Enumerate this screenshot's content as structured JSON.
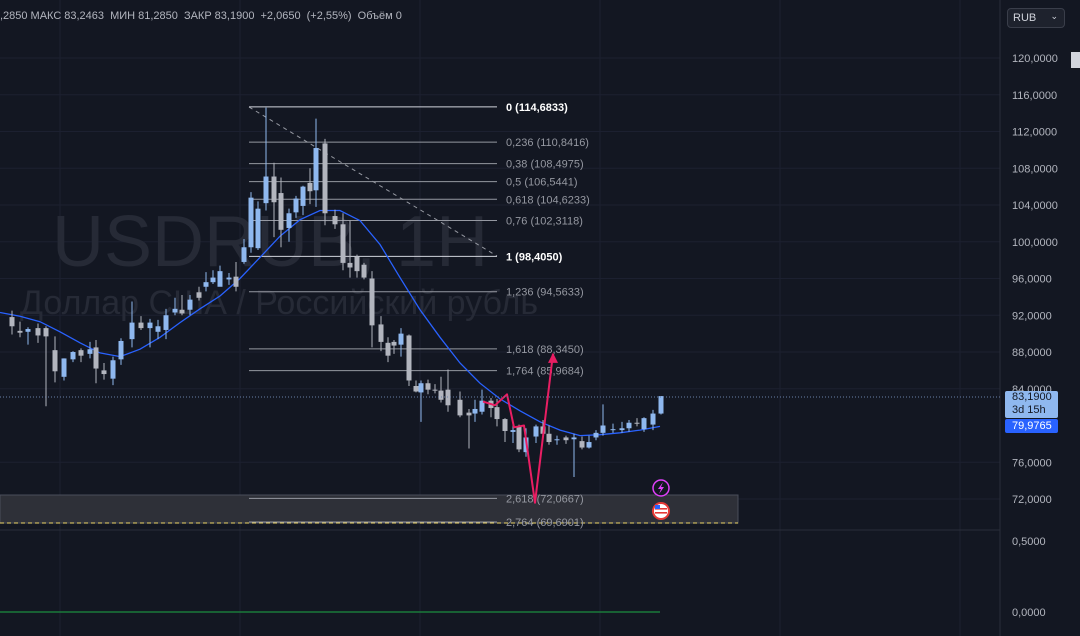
{
  "ohlc_bar": {
    "open_value": ",2850",
    "high_label": "МАКС",
    "high_value": "83,2463",
    "low_label": "МИН",
    "low_value": "81,2850",
    "close_label": "ЗАКР",
    "close_value": "83,1900",
    "change": "+2,0650",
    "change_pct": "(+2,55%)",
    "volume_label": "Объём",
    "volume_value": "0"
  },
  "currency_selector": {
    "label": "RUB",
    "chevron": "chevron-down-icon"
  },
  "watermark": {
    "symbol": "USDRUB, 1H",
    "description": "Доллар США / Российский рубль"
  },
  "price_tags": {
    "last_price": "83,1900",
    "countdown": "3d 15h",
    "ma_value": "79,9765"
  },
  "colors": {
    "background": "#131722",
    "candle_up": "#8fb8ef",
    "candle_down": "#b2b5be",
    "moving_average": "#2962ff",
    "pattern": "#e91e63",
    "fib_line": "#9598a1",
    "grid": "#1c2030"
  },
  "events": [
    {
      "icon": "lightning-icon"
    },
    {
      "icon": "us-flag-icon"
    }
  ],
  "chart_data": {
    "type": "candlestick",
    "symbol": "USDRUB",
    "timeframe": "1H",
    "y_axis": {
      "ticks": [
        "120,0000",
        "116,0000",
        "112,0000",
        "108,0000",
        "104,0000",
        "100,0000",
        "96,0000",
        "92,0000",
        "88,0000",
        "84,0000",
        "76,0000",
        "72,0000"
      ],
      "ylim": [
        71.5,
        120.5
      ]
    },
    "indicator_axis": {
      "ticks": [
        "0,5000",
        "0,0000"
      ]
    },
    "fibonacci": [
      {
        "label": "0 (114,6833)",
        "level": 114.6833,
        "bold": true
      },
      {
        "label": "0,236 (110,8416)",
        "level": 110.8416
      },
      {
        "label": "0,38 (108,4975)",
        "level": 108.4975
      },
      {
        "label": "0,5 (106,5441)",
        "level": 106.5441
      },
      {
        "label": "0,618 (104,6233)",
        "level": 104.6233
      },
      {
        "label": "0,76 (102,3118)",
        "level": 102.3118
      },
      {
        "label": "1 (98,4050)",
        "level": 98.405,
        "bold": true
      },
      {
        "label": "1,236 (94,5633)",
        "level": 94.5633
      },
      {
        "label": "1,618 (88,3450)",
        "level": 88.345
      },
      {
        "label": "1,764 (85,9684)",
        "level": 85.9684
      },
      {
        "label": "2,618 (72,0667)",
        "level": 72.0667
      },
      {
        "label": "2,764 (69,6901)",
        "level": 69.6901
      }
    ],
    "ma_path": [
      [
        0,
        92.3
      ],
      [
        20,
        91.9
      ],
      [
        40,
        91.3
      ],
      [
        60,
        90.2
      ],
      [
        80,
        89
      ],
      [
        100,
        87.9
      ],
      [
        120,
        87.5
      ],
      [
        140,
        88.3
      ],
      [
        160,
        89.6
      ],
      [
        180,
        91.2
      ],
      [
        200,
        92.7
      ],
      [
        220,
        94.1
      ],
      [
        240,
        96
      ],
      [
        260,
        98.3
      ],
      [
        280,
        100.6
      ],
      [
        300,
        102.4
      ],
      [
        320,
        103.4
      ],
      [
        340,
        103.4
      ],
      [
        360,
        102.3
      ],
      [
        380,
        99.7
      ],
      [
        400,
        96.1
      ],
      [
        420,
        92.6
      ],
      [
        440,
        89.6
      ],
      [
        460,
        86.8
      ],
      [
        480,
        84.6
      ],
      [
        500,
        82.9
      ],
      [
        520,
        81.6
      ],
      [
        540,
        80.4
      ],
      [
        560,
        79.5
      ],
      [
        580,
        78.9
      ],
      [
        600,
        79
      ],
      [
        620,
        79.2
      ],
      [
        640,
        79.5
      ],
      [
        660,
        79.9
      ]
    ],
    "pattern_path": [
      [
        483,
        82.6
      ],
      [
        495,
        82.2
      ],
      [
        507,
        83.4
      ],
      [
        514,
        79.8
      ],
      [
        524,
        80
      ],
      [
        535,
        71.6
      ],
      [
        553,
        87.8
      ]
    ],
    "pattern_arrow_tip": [
      553,
      87.9
    ],
    "candles": [
      {
        "x": 12,
        "o": 91.8,
        "h": 92.5,
        "c": 90.8,
        "l": 89.9
      },
      {
        "x": 20,
        "o": 90.3,
        "h": 91.3,
        "c": 90.1,
        "l": 89.6
      },
      {
        "x": 28,
        "o": 90.2,
        "h": 90.7,
        "c": 90.5,
        "l": 88.8
      },
      {
        "x": 38,
        "o": 90.6,
        "h": 91.1,
        "c": 89.8,
        "l": 89
      },
      {
        "x": 46,
        "o": 90.6,
        "h": 90.8,
        "c": 89.7,
        "l": 82.1
      },
      {
        "x": 55,
        "o": 88.2,
        "h": 89.7,
        "c": 85.9,
        "l": 84.7
      },
      {
        "x": 64,
        "o": 85.3,
        "h": 87.3,
        "c": 87.3,
        "l": 84.9
      },
      {
        "x": 73,
        "o": 87.2,
        "h": 88.1,
        "c": 88,
        "l": 86.9
      },
      {
        "x": 81,
        "o": 88.2,
        "h": 88.4,
        "c": 87.6,
        "l": 86.9
      },
      {
        "x": 90,
        "o": 87.8,
        "h": 89.1,
        "c": 88.3,
        "l": 87.3
      },
      {
        "x": 96,
        "o": 88.5,
        "h": 89.3,
        "c": 86.2,
        "l": 84.6
      },
      {
        "x": 104,
        "o": 86,
        "h": 86.8,
        "c": 85.6,
        "l": 85
      },
      {
        "x": 113,
        "o": 85.1,
        "h": 87.5,
        "c": 87.1,
        "l": 84.4
      },
      {
        "x": 121,
        "o": 87.2,
        "h": 89.5,
        "c": 89.2,
        "l": 86.6
      },
      {
        "x": 132,
        "o": 89.4,
        "h": 93.5,
        "c": 91.2,
        "l": 88.5
      },
      {
        "x": 141,
        "o": 91.2,
        "h": 91.9,
        "c": 90.6,
        "l": 90.4
      },
      {
        "x": 150,
        "o": 90.6,
        "h": 91.6,
        "c": 91.2,
        "l": 88.5
      },
      {
        "x": 158,
        "o": 90.2,
        "h": 91.5,
        "c": 90.8,
        "l": 89.4
      },
      {
        "x": 166,
        "o": 90.4,
        "h": 92.7,
        "c": 92,
        "l": 89.4
      },
      {
        "x": 175,
        "o": 92.3,
        "h": 93.9,
        "c": 92.7,
        "l": 92
      },
      {
        "x": 182,
        "o": 92.6,
        "h": 94.2,
        "c": 92.2,
        "l": 92
      },
      {
        "x": 190,
        "o": 92.6,
        "h": 94.2,
        "c": 93.7,
        "l": 92
      },
      {
        "x": 199,
        "o": 94.5,
        "h": 95.1,
        "c": 93.9,
        "l": 93.6
      },
      {
        "x": 206,
        "o": 95.1,
        "h": 96.7,
        "c": 95.6,
        "l": 94.6
      },
      {
        "x": 213,
        "o": 95.6,
        "h": 96.9,
        "c": 96.1,
        "l": 95.4
      },
      {
        "x": 220,
        "o": 95.1,
        "h": 97.4,
        "c": 96.8,
        "l": 95.4
      },
      {
        "x": 229,
        "o": 95.9,
        "h": 96.6,
        "c": 96.1,
        "l": 95.3
      },
      {
        "x": 236,
        "o": 96.2,
        "h": 97.8,
        "c": 95.1,
        "l": 94.6
      },
      {
        "x": 244,
        "o": 97.8,
        "h": 100.3,
        "c": 99.4,
        "l": 97.6
      },
      {
        "x": 251,
        "o": 99.4,
        "h": 105.4,
        "c": 104.8,
        "l": 98.8
      },
      {
        "x": 258,
        "o": 99.3,
        "h": 104.4,
        "c": 103.6,
        "l": 99.1
      },
      {
        "x": 266,
        "o": 104.2,
        "h": 114.6,
        "c": 107.1,
        "l": 103.4
      },
      {
        "x": 274,
        "o": 107.1,
        "h": 108.6,
        "c": 104.3,
        "l": 100.5
      },
      {
        "x": 281,
        "o": 105.3,
        "h": 107,
        "c": 101.3,
        "l": 99.4
      },
      {
        "x": 289,
        "o": 101.5,
        "h": 103.6,
        "c": 103.1,
        "l": 100
      },
      {
        "x": 296,
        "o": 103.2,
        "h": 105,
        "c": 104.7,
        "l": 102.6
      },
      {
        "x": 303,
        "o": 103.9,
        "h": 106.1,
        "c": 106,
        "l": 102.9
      },
      {
        "x": 310,
        "o": 106.4,
        "h": 108,
        "c": 105.5,
        "l": 104.1
      },
      {
        "x": 316,
        "o": 105.6,
        "h": 113.4,
        "c": 110.2,
        "l": 103.8
      },
      {
        "x": 325,
        "o": 110.7,
        "h": 111.2,
        "c": 103.1,
        "l": 101.8
      },
      {
        "x": 335,
        "o": 102.8,
        "h": 103.5,
        "c": 101.9,
        "l": 101.4
      },
      {
        "x": 343,
        "o": 101.9,
        "h": 103.1,
        "c": 97.7,
        "l": 96.9
      },
      {
        "x": 350,
        "o": 97.7,
        "h": 102.3,
        "c": 97.2,
        "l": 96.1
      },
      {
        "x": 357,
        "o": 98.4,
        "h": 98.6,
        "c": 96.8,
        "l": 96.1
      },
      {
        "x": 364,
        "o": 97.5,
        "h": 97.7,
        "c": 96.1,
        "l": 95.9
      },
      {
        "x": 372,
        "o": 96,
        "h": 96.8,
        "c": 90.9,
        "l": 88.5
      },
      {
        "x": 381,
        "o": 91,
        "h": 91.9,
        "c": 89.1,
        "l": 88.1
      },
      {
        "x": 388,
        "o": 89,
        "h": 89.6,
        "c": 87.6,
        "l": 86.9
      },
      {
        "x": 394,
        "o": 89.1,
        "h": 89.3,
        "c": 88.7,
        "l": 87.8
      },
      {
        "x": 401,
        "o": 88.8,
        "h": 90.6,
        "c": 90,
        "l": 87.5
      },
      {
        "x": 409,
        "o": 89.8,
        "h": 89.9,
        "c": 84.9,
        "l": 84.3
      },
      {
        "x": 416,
        "o": 84.3,
        "h": 84.9,
        "c": 83.7,
        "l": 83.6
      },
      {
        "x": 421,
        "o": 83.6,
        "h": 84.9,
        "c": 84.6,
        "l": 80.4
      },
      {
        "x": 428,
        "o": 84.6,
        "h": 85,
        "c": 83.9,
        "l": 83.4
      },
      {
        "x": 435,
        "o": 83.9,
        "h": 84.5,
        "c": 83.8,
        "l": 83.5
      },
      {
        "x": 441,
        "o": 83.8,
        "h": 85.3,
        "c": 82.8,
        "l": 82.5
      },
      {
        "x": 448,
        "o": 83.9,
        "h": 86.1,
        "c": 82.2,
        "l": 81.5
      },
      {
        "x": 460,
        "o": 82.8,
        "h": 83.7,
        "c": 81.1,
        "l": 80.9
      },
      {
        "x": 469,
        "o": 81.4,
        "h": 81.8,
        "c": 81.1,
        "l": 77.5
      },
      {
        "x": 475,
        "o": 81.3,
        "h": 82.8,
        "c": 81.8,
        "l": 80.4
      },
      {
        "x": 482,
        "o": 81.5,
        "h": 83.9,
        "c": 82.7,
        "l": 81.2
      },
      {
        "x": 491,
        "o": 82.7,
        "h": 83,
        "c": 81.9,
        "l": 80.9
      },
      {
        "x": 497,
        "o": 82,
        "h": 82.9,
        "c": 80.7,
        "l": 79.9
      },
      {
        "x": 505,
        "o": 80.7,
        "h": 80.8,
        "c": 79.4,
        "l": 78.2
      },
      {
        "x": 513,
        "o": 79.3,
        "h": 80.4,
        "c": 79.5,
        "l": 78.1
      },
      {
        "x": 519,
        "o": 79.9,
        "h": 80.1,
        "c": 77.4,
        "l": 77.1
      },
      {
        "x": 526,
        "o": 77.1,
        "h": 79.7,
        "c": 78.7,
        "l": 76.6
      },
      {
        "x": 536,
        "o": 78.8,
        "h": 80.1,
        "c": 79.9,
        "l": 78.1
      },
      {
        "x": 543,
        "o": 79.9,
        "h": 80.6,
        "c": 79.1,
        "l": 78.9
      },
      {
        "x": 549,
        "o": 79.1,
        "h": 80,
        "c": 78.2,
        "l": 77.9
      },
      {
        "x": 557,
        "o": 78.4,
        "h": 78.9,
        "c": 78.5,
        "l": 77.9
      },
      {
        "x": 566,
        "o": 78.7,
        "h": 78.9,
        "c": 78.4,
        "l": 78
      },
      {
        "x": 574,
        "o": 78.5,
        "h": 79.1,
        "c": 78.7,
        "l": 74.4
      },
      {
        "x": 582,
        "o": 78.3,
        "h": 78.8,
        "c": 77.6,
        "l": 77.4
      },
      {
        "x": 589,
        "o": 77.6,
        "h": 78.9,
        "c": 78.2,
        "l": 77.5
      },
      {
        "x": 596,
        "o": 78.7,
        "h": 79.5,
        "c": 79.2,
        "l": 78.4
      },
      {
        "x": 603,
        "o": 79.2,
        "h": 82.3,
        "c": 80,
        "l": 78.9
      },
      {
        "x": 613,
        "o": 79.6,
        "h": 80.2,
        "c": 79.6,
        "l": 79.2
      },
      {
        "x": 622,
        "o": 79.5,
        "h": 80.4,
        "c": 79.7,
        "l": 79.2
      },
      {
        "x": 629,
        "o": 79.7,
        "h": 80.6,
        "c": 80.3,
        "l": 79.3
      },
      {
        "x": 637,
        "o": 80.3,
        "h": 80.8,
        "c": 80.2,
        "l": 79.9
      },
      {
        "x": 644,
        "o": 79.6,
        "h": 80.9,
        "c": 80.8,
        "l": 79.3
      },
      {
        "x": 653,
        "o": 80.1,
        "h": 81.7,
        "c": 81.3,
        "l": 79.5
      },
      {
        "x": 661,
        "o": 81.3,
        "h": 83.2,
        "c": 83.2,
        "l": 81.2
      }
    ]
  }
}
